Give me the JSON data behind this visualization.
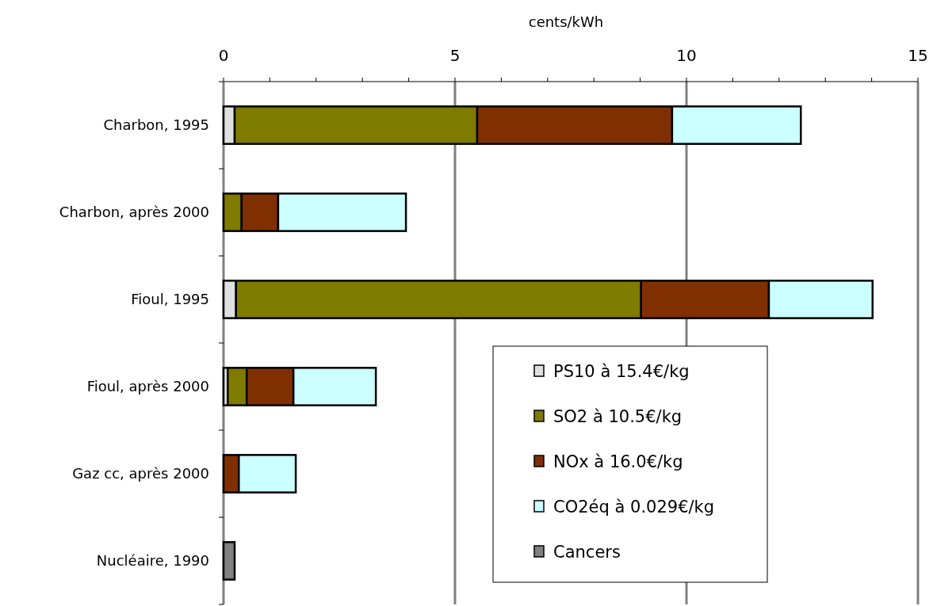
{
  "chart_data": {
    "type": "bar",
    "orientation": "horizontal",
    "stacked": true,
    "xlabel": "cents/kWh",
    "categories": [
      "Charbon, 1995",
      "Charbon, après 2000",
      "Fioul, 1995",
      "Fioul, après 2000",
      "Gaz cc, après 2000",
      "Nucléaire, 1990"
    ],
    "series": [
      {
        "name": "PS10 à 15.4€/kg",
        "color": "#e0e0e0",
        "values": [
          0.24,
          null,
          0.27,
          0.09,
          null,
          null
        ]
      },
      {
        "name": "SO2 à 10.5€/kg",
        "color": "#7f7a00",
        "values": [
          5.24,
          0.39,
          8.75,
          0.41,
          null,
          null
        ]
      },
      {
        "name": "NOx à 16.0€/kg",
        "color": "#803000",
        "values": [
          4.21,
          0.79,
          2.76,
          1.01,
          0.33,
          null
        ]
      },
      {
        "name": "CO2éq à 0.029€/kg",
        "color": "#ccffff",
        "values": [
          2.78,
          2.76,
          2.24,
          1.78,
          1.23,
          null
        ]
      },
      {
        "name": "Cancers",
        "color": "#808080",
        "values": [
          null,
          null,
          null,
          null,
          null,
          0.24
        ]
      }
    ],
    "xlim": [
      0,
      15
    ],
    "xticks": [
      0,
      {
        "value": 1,
        "label": null
      },
      {
        "value": 2,
        "label": null
      },
      {
        "value": 3,
        "label": null
      },
      {
        "value": 4,
        "label": null
      },
      5,
      {
        "value": 6,
        "label": null
      },
      {
        "value": 7,
        "label": null
      },
      {
        "value": 8,
        "label": null
      },
      {
        "value": 9,
        "label": null
      },
      10,
      {
        "value": 11,
        "label": null
      },
      {
        "value": 12,
        "label": null
      },
      {
        "value": 13,
        "label": null
      },
      {
        "value": 14,
        "label": null
      },
      15
    ],
    "grid": "x",
    "legend": "bottom right"
  }
}
